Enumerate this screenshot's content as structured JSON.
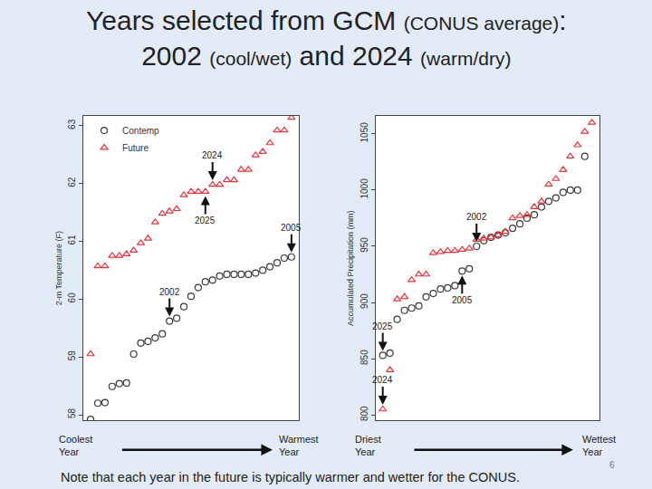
{
  "title": "Years selected from GCM (CONUS average): 2002 (cool/wet) and 2024 (warm/dry)",
  "note": "Note that each year in the future is typically warmer and wetter for the CONUS.",
  "page_number": "6",
  "chart_data": [
    {
      "type": "scatter",
      "y_label": "2-m Temperature (F)",
      "xlim": [
        0,
        30
      ],
      "ylim": [
        57.9,
        63.17
      ],
      "yticks": [
        58,
        59,
        60,
        61,
        62,
        63
      ],
      "grid": false,
      "tick_labels": "y",
      "legend": "top left",
      "x_axis_ends": [
        "Coolest Year",
        "Warmest Year"
      ],
      "series": [
        {
          "name": "Contemp",
          "color": "#3a3a3a",
          "marker": "circle",
          "x": [
            1,
            2,
            3,
            4,
            5,
            6,
            7,
            8,
            9,
            10,
            11,
            12,
            13,
            14,
            15,
            16,
            17,
            18,
            19,
            20,
            21,
            22,
            23,
            24,
            25,
            26,
            27,
            28,
            29
          ],
          "values": [
            57.92,
            58.2,
            58.21,
            58.49,
            58.54,
            58.55,
            59.05,
            59.24,
            59.27,
            59.33,
            59.4,
            59.62,
            59.67,
            59.87,
            60.05,
            60.2,
            60.3,
            60.33,
            60.4,
            60.43,
            60.43,
            60.43,
            60.43,
            60.45,
            60.5,
            60.56,
            60.63,
            60.71,
            60.73
          ]
        },
        {
          "name": "Future",
          "color": "#e8333c",
          "marker": "triangle",
          "x": [
            1,
            2,
            3,
            4,
            5,
            6,
            7,
            8,
            9,
            10,
            11,
            12,
            13,
            14,
            15,
            16,
            17,
            18,
            19,
            20,
            21,
            22,
            23,
            24,
            25,
            26,
            27,
            28,
            29
          ],
          "values": [
            59.05,
            60.57,
            60.57,
            60.75,
            60.75,
            60.78,
            60.84,
            60.97,
            61.05,
            61.33,
            61.48,
            61.52,
            61.56,
            61.8,
            61.86,
            61.86,
            61.86,
            61.98,
            61.98,
            62.06,
            62.06,
            62.24,
            62.24,
            62.49,
            62.55,
            62.7,
            62.92,
            62.92,
            63.14
          ]
        }
      ],
      "annotations": [
        {
          "text": "2024",
          "x": 18,
          "y": 61.98
        },
        {
          "text": "2025",
          "x": 17,
          "y": 61.86
        },
        {
          "text": "2002",
          "x": 12,
          "y": 59.62
        },
        {
          "text": "2005",
          "x": 29,
          "y": 60.73
        }
      ]
    },
    {
      "type": "scatter",
      "y_label": "Accumulated Precipitation (mm)",
      "xlim": [
        0,
        31
      ],
      "ylim": [
        795,
        1066
      ],
      "yticks": [
        800,
        850,
        900,
        950,
        1000,
        1050
      ],
      "grid": false,
      "tick_labels": "y",
      "x_axis_ends": [
        "Driest Year",
        "Wettest Year"
      ],
      "series": [
        {
          "name": "Contemp",
          "color": "#3a3a3a",
          "marker": "circle",
          "x": [
            1,
            2,
            3,
            4,
            5,
            6,
            7,
            8,
            9,
            10,
            11,
            12,
            13,
            14,
            15,
            16,
            17,
            18,
            19,
            20,
            21,
            22,
            23,
            24,
            25,
            26,
            27,
            28,
            29
          ],
          "values": [
            853,
            855,
            885,
            893,
            895,
            897,
            905,
            908,
            912,
            913,
            915,
            928,
            930,
            950,
            955,
            958,
            960,
            962,
            966,
            970,
            975,
            978,
            985,
            990,
            993,
            998,
            1000,
            1000,
            1030
          ]
        },
        {
          "name": "Future",
          "color": "#e8333c",
          "marker": "triangle",
          "x": [
            1,
            2,
            3,
            4,
            5,
            6,
            7,
            8,
            9,
            10,
            11,
            12,
            13,
            14,
            15,
            16,
            17,
            18,
            19,
            20,
            21,
            22,
            23,
            24,
            25,
            26,
            27,
            28,
            29,
            30
          ],
          "values": [
            805,
            840,
            903,
            905,
            920,
            925,
            925,
            944,
            945,
            946,
            946,
            947,
            948,
            956,
            957,
            958,
            960,
            963,
            975,
            977,
            978,
            985,
            990,
            1005,
            1010,
            1018,
            1030,
            1040,
            1052,
            1060
          ]
        }
      ],
      "annotations": [
        {
          "text": "2002",
          "x": 14,
          "y": 950
        },
        {
          "text": "2005",
          "x": 12,
          "y": 928
        },
        {
          "text": "2025",
          "x": 1,
          "y": 853
        },
        {
          "text": "2024",
          "x": 1,
          "y": 805
        }
      ]
    }
  ]
}
